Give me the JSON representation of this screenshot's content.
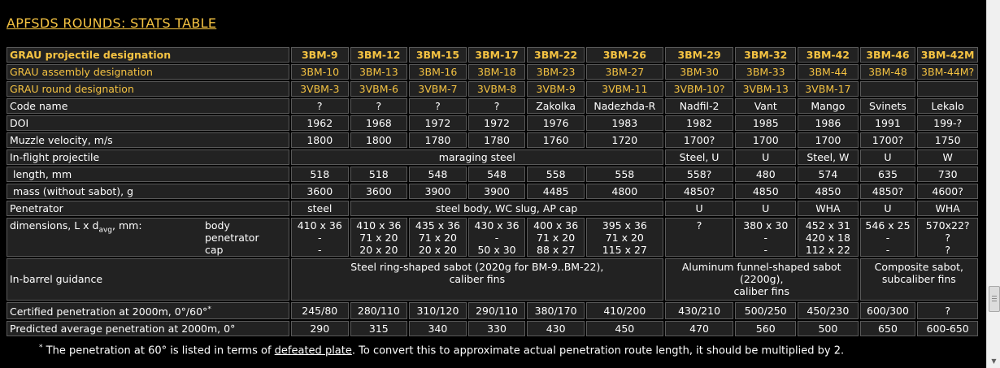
{
  "title": "APFSDS ROUNDS: STATS TABLE",
  "table": {
    "projectile": {
      "label": "GRAU projectile designation",
      "values": [
        "3BM-9",
        "3BM-12",
        "3BM-15",
        "3BM-17",
        "3BM-22",
        "3BM-26",
        "3BM-29",
        "3BM-32",
        "3BM-42",
        "3BM-46",
        "3BM-42M"
      ]
    },
    "assembly": {
      "label": "GRAU assembly designation",
      "values": [
        "3BM-10",
        "3BM-13",
        "3BM-16",
        "3BM-18",
        "3BM-23",
        "3BM-27",
        "3BM-30",
        "3BM-33",
        "3BM-44",
        "3BM-48",
        "3BM-44M?"
      ]
    },
    "round": {
      "label": "GRAU round designation",
      "values": [
        "3VBM-3",
        "3VBM-6",
        "3VBM-7",
        "3VBM-8",
        "3VBM-9",
        "3VBM-11",
        "3VBM-10?",
        "3VBM-13",
        "3VBM-17"
      ]
    },
    "codename": {
      "label": "Code name",
      "values": [
        "?",
        "?",
        "?",
        "?",
        "Zakolka",
        "Nadezhda-R",
        "Nadfil-2",
        "Vant",
        "Mango",
        "Svinets",
        "Lekalo"
      ]
    },
    "doi": {
      "label": "DOI",
      "values": [
        "1962",
        "1968",
        "1972",
        "1972",
        "1976",
        "1983",
        "1982",
        "1985",
        "1986",
        "1991",
        "199-?"
      ]
    },
    "velocity": {
      "label": "Muzzle velocity, m/s",
      "values": [
        "1800",
        "1800",
        "1780",
        "1780",
        "1760",
        "1720",
        "1700?",
        "1700",
        "1700",
        "1700?",
        "1750"
      ]
    },
    "inflight": {
      "label": "In-flight projectile",
      "values": [
        "maraging steel",
        "Steel, U",
        "U",
        "Steel, W",
        "U",
        "W"
      ]
    },
    "length": {
      "label": " length, mm",
      "values": [
        "518",
        "518",
        "548",
        "548",
        "558",
        "558",
        "558?",
        "480",
        "574",
        "635",
        "730"
      ]
    },
    "mass": {
      "label": " mass (without sabot), g",
      "values": [
        "3600",
        "3600",
        "3900",
        "3900",
        "4485",
        "4800",
        "4850?",
        "4850",
        "4850",
        "4850?",
        "4600?"
      ]
    },
    "penetrator": {
      "label": "Penetrator",
      "values": [
        "steel",
        "steel body, WC slug, AP cap",
        "U",
        "U",
        "WHA",
        "U",
        "WHA"
      ]
    },
    "dimensions": {
      "label_prefix": "dimensions, L x d",
      "label_sub": "avg",
      "label_suffix": ", mm:",
      "sub_labels": [
        "body",
        "penetrator",
        "cap"
      ],
      "values": [
        [
          "410 x 36",
          "-",
          "-"
        ],
        [
          "410 x 36",
          "71 x 20",
          "20 x 20"
        ],
        [
          "435 x 36",
          "71 x 20",
          "20 x 20"
        ],
        [
          "430 x 36",
          "-",
          "50 x 30"
        ],
        [
          "400 x 36",
          "71 x 20",
          "88 x 27"
        ],
        [
          "395 x 36",
          "71 x 20",
          "115 x 27"
        ],
        [
          "?"
        ],
        [
          "380 x 30",
          "-",
          "-"
        ],
        [
          "452 x 31",
          "420 x 18",
          "112 x 22"
        ],
        [
          "546 x 25",
          "-",
          "-"
        ],
        [
          "570x22?",
          "?",
          "?"
        ]
      ]
    },
    "guidance": {
      "label": "In-barrel guidance",
      "values": [
        [
          "Steel ring-shaped sabot (2020g for BM-9..BM-22),",
          "caliber fins"
        ],
        [
          "Aluminum funnel-shaped sabot",
          "(2200g),",
          "caliber fins"
        ],
        [
          "Composite sabot,",
          "subcaliber fins"
        ]
      ]
    },
    "certified": {
      "label": "Certified penetration at 2000m, 0°/60°",
      "label_sup": "*",
      "values": [
        "245/80",
        "280/110",
        "310/120",
        "290/110",
        "380/170",
        "410/200",
        "430/210",
        "500/250",
        "450/230",
        "600/300",
        "?"
      ]
    },
    "predicted": {
      "label": "Predicted average penetration at 2000m, 0°",
      "values": [
        "290",
        "315",
        "340",
        "330",
        "430",
        "450",
        "470",
        "560",
        "500",
        "650",
        "600-650"
      ]
    }
  },
  "footnote": {
    "star": "*",
    "before": " The penetration at 60° is listed in terms of ",
    "link": "defeated plate",
    "after": ". To convert this to approximate actual penetration route length, it should be multiplied by 2."
  },
  "scrollbar": {
    "down_arrow": "▼"
  }
}
